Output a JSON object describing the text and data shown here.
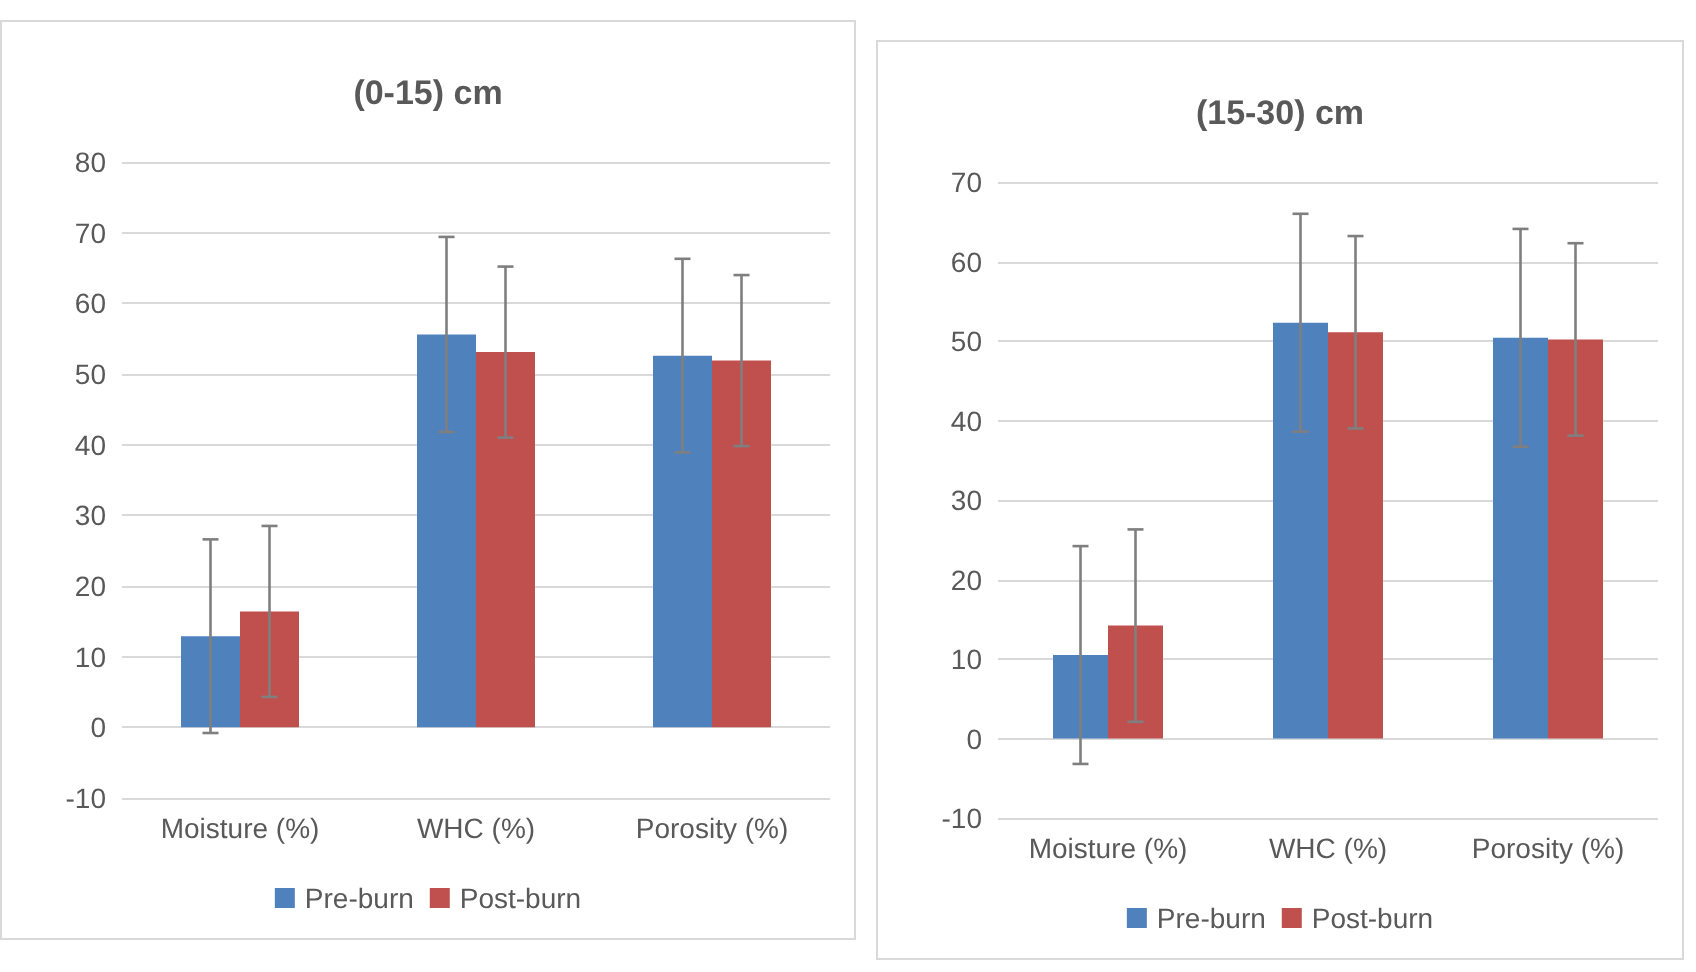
{
  "chart_data": [
    {
      "type": "bar",
      "title": "(0-15) cm",
      "categories": [
        "Moisture (%)",
        "WHC (%)",
        "Porosity (%)"
      ],
      "series": [
        {
          "name": "Pre-burn",
          "color": "#4f81bd",
          "values": [
            12.9,
            55.6,
            52.6
          ],
          "errors": [
            13.7,
            13.8,
            13.7
          ]
        },
        {
          "name": "Post-burn",
          "color": "#c0504d",
          "values": [
            16.4,
            53.1,
            51.9
          ],
          "errors": [
            12.1,
            12.1,
            12.1
          ]
        }
      ],
      "ylim": [
        -10,
        80
      ],
      "yticks": [
        -10,
        0,
        10,
        20,
        30,
        40,
        50,
        60,
        70,
        80
      ],
      "grid": "y",
      "legend": "bottom"
    },
    {
      "type": "bar",
      "title": "(15-30) cm",
      "categories": [
        "Moisture (%)",
        "WHC (%)",
        "Porosity (%)"
      ],
      "series": [
        {
          "name": "Pre-burn",
          "color": "#4f81bd",
          "values": [
            10.5,
            52.3,
            50.4
          ],
          "errors": [
            13.7,
            13.7,
            13.7
          ]
        },
        {
          "name": "Post-burn",
          "color": "#c0504d",
          "values": [
            14.2,
            51.1,
            50.2
          ],
          "errors": [
            12.1,
            12.1,
            12.1
          ]
        }
      ],
      "ylim": [
        -10,
        70
      ],
      "yticks": [
        -10,
        0,
        10,
        20,
        30,
        40,
        50,
        60,
        70
      ],
      "grid": "y",
      "legend": "bottom"
    }
  ]
}
